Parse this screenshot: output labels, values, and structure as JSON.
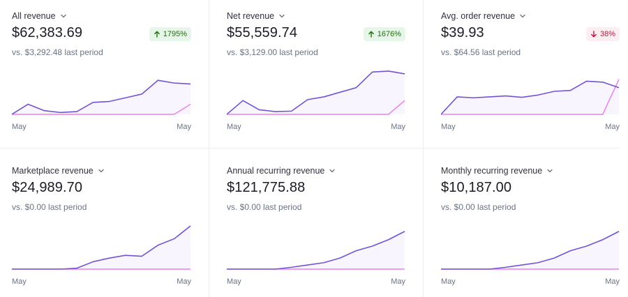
{
  "colors": {
    "current_line": "#7452d4",
    "previous_line": "#e584e8",
    "area_fill": "#f8f5fe",
    "axis": "#e584e8",
    "badge_up_bg": "#e6f7ea",
    "badge_up_text": "#217005",
    "badge_down_bg": "#fdeef1",
    "badge_down_text": "#c0123c"
  },
  "icons": {
    "dropdown": "chevron-down-icon",
    "up": "arrow-up-icon",
    "down": "arrow-down-icon"
  },
  "cards": [
    {
      "title": "All revenue",
      "value": "$62,383.69",
      "change": "1795%",
      "direction": "up",
      "comparison": "vs. $3,292.48 last period",
      "x_start": "May",
      "x_end": "May",
      "chart_data": {
        "type": "line",
        "ylim": [
          0,
          100
        ],
        "series": [
          {
            "values": [
              0,
              22,
              8,
              4,
              6,
              26,
              28,
              36,
              44,
              74,
              68,
              66
            ]
          },
          {
            "values": [
              0,
              0,
              0,
              0,
              0,
              0,
              0,
              0,
              0,
              0,
              0,
              22
            ]
          }
        ]
      }
    },
    {
      "title": "Net revenue",
      "value": "$55,559.74",
      "change": "1676%",
      "direction": "up",
      "comparison": "vs. $3,129.00 last period",
      "x_start": "May",
      "x_end": "May",
      "chart_data": {
        "type": "line",
        "ylim": [
          0,
          100
        ],
        "series": [
          {
            "values": [
              0,
              30,
              10,
              6,
              7,
              32,
              38,
              48,
              58,
              92,
              94,
              88
            ]
          },
          {
            "values": [
              0,
              0,
              0,
              0,
              0,
              0,
              0,
              0,
              0,
              0,
              0,
              30
            ]
          }
        ]
      }
    },
    {
      "title": "Avg. order revenue",
      "value": "$39.93",
      "change": "38%",
      "direction": "down",
      "comparison": "vs. $64.56 last period",
      "x_start": "May",
      "x_end": "May",
      "chart_data": {
        "type": "line",
        "ylim": [
          0,
          100
        ],
        "series": [
          {
            "values": [
              0,
              38,
              36,
              38,
              40,
              37,
              42,
              50,
              52,
              72,
              70,
              58
            ]
          },
          {
            "values": [
              0,
              0,
              0,
              0,
              0,
              0,
              0,
              0,
              0,
              0,
              0,
              76
            ]
          }
        ]
      }
    },
    {
      "title": "Marketplace revenue",
      "value": "$24,989.70",
      "change": "",
      "direction": "",
      "comparison": "vs. $0.00 last period",
      "x_start": "May",
      "x_end": "May",
      "chart_data": {
        "type": "line",
        "ylim": [
          0,
          100
        ],
        "series": [
          {
            "values": [
              0,
              0,
              0,
              0,
              2,
              16,
              24,
              30,
              28,
              52,
              66,
              94
            ]
          },
          {
            "values": [
              0,
              0,
              0,
              0,
              0,
              0,
              0,
              0,
              0,
              0,
              0,
              0
            ]
          }
        ]
      }
    },
    {
      "title": "Annual recurring revenue",
      "value": "$121,775.88",
      "change": "",
      "direction": "",
      "comparison": "vs. $0.00 last period",
      "x_start": "May",
      "x_end": "May",
      "chart_data": {
        "type": "line",
        "ylim": [
          0,
          100
        ],
        "series": [
          {
            "values": [
              0,
              0,
              0,
              0,
              4,
              9,
              14,
              24,
              40,
              50,
              64,
              82
            ]
          },
          {
            "values": [
              0,
              0,
              0,
              0,
              0,
              0,
              0,
              0,
              0,
              0,
              0,
              0
            ]
          }
        ]
      }
    },
    {
      "title": "Monthly recurring revenue",
      "value": "$10,187.00",
      "change": "",
      "direction": "",
      "comparison": "vs. $0.00 last period",
      "x_start": "May",
      "x_end": "May",
      "chart_data": {
        "type": "line",
        "ylim": [
          0,
          100
        ],
        "series": [
          {
            "values": [
              0,
              0,
              0,
              0,
              4,
              9,
              14,
              24,
              40,
              50,
              64,
              82
            ]
          },
          {
            "values": [
              0,
              0,
              0,
              0,
              0,
              0,
              0,
              0,
              0,
              0,
              0,
              0
            ]
          }
        ]
      }
    }
  ]
}
